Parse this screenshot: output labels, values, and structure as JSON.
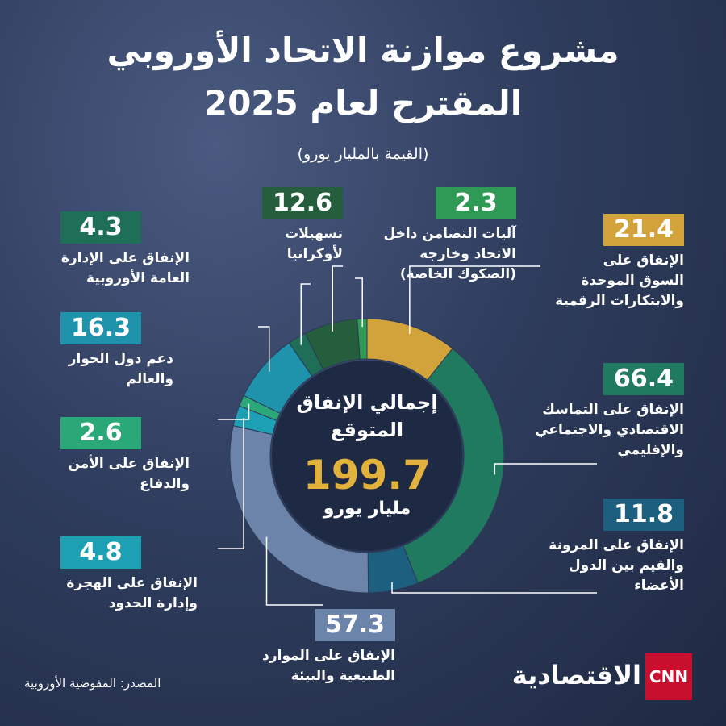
{
  "chart_data": {
    "type": "donut",
    "title": [
      "مشروع موازنة الاتحاد الأوروبي",
      "المقترح لعام 2025"
    ],
    "subtitle": "(القيمة بالمليار يورو)",
    "categories": [
      "الإنفاق على السوق الموحدة والابتكارات الرقمية",
      "الإنفاق على التماسك الاقتصادي والاجتماعي والإقليمي",
      "الإنفاق على المرونة والقيم بين الدول الأعضاء",
      "الإنفاق على الموارد الطبيعية والبيئة",
      "الإنفاق على الهجرة وإدارة الحدود",
      "الإنفاق على الأمن والدفاع",
      "دعم دول الجوار والعالم",
      "الإنفاق على الإدارة العامة الأوروبية",
      "تسهيلات لأوكرانيا",
      "آليات التضامن داخل الاتحاد وخارجه (الصكوك الخاصة)"
    ],
    "values": [
      21.4,
      66.4,
      11.8,
      57.3,
      4.8,
      2.6,
      16.3,
      4.3,
      12.6,
      2.3
    ],
    "colors": [
      "#d2a33a",
      "#1f7a5f",
      "#1d5f7e",
      "#6c84aa",
      "#1ea0b4",
      "#2aa878",
      "#1f93ab",
      "#1e6e58",
      "#245e3c",
      "#2e9a55"
    ],
    "center_label": "إجمالي الإنفاق المتوقع",
    "total": 199.7,
    "total_unit": "مليار يورو",
    "source": "المصدر: المفوضية الأوروبية",
    "logo": {
      "brand": "CNN",
      "name": "الاقتصادية"
    }
  }
}
